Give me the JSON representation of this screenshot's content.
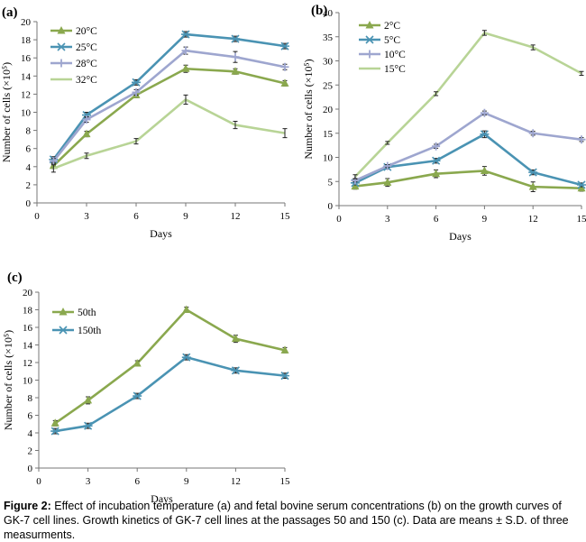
{
  "chart_data": [
    {
      "type": "line",
      "panel_label": "(a)",
      "x": [
        1,
        3,
        6,
        9,
        12,
        15
      ],
      "xticks": [
        "0",
        "3",
        "6",
        "9",
        "12",
        "15"
      ],
      "xlim": [
        0,
        15
      ],
      "ylim": [
        0,
        20
      ],
      "yticks": [
        "0",
        "2",
        "4",
        "6",
        "8",
        "10",
        "12",
        "14",
        "16",
        "18",
        "20"
      ],
      "xlabel": "Days",
      "ylabel": "Number of cells (×10⁵)",
      "legend_position": "top-left",
      "series": [
        {
          "name": "20°C",
          "color": "#8aa84e",
          "marker": "triangle",
          "values": [
            4.1,
            7.6,
            11.9,
            14.8,
            14.5,
            13.2
          ],
          "errors": [
            0.3,
            0.3,
            0.3,
            0.4,
            0.3,
            0.3
          ]
        },
        {
          "name": "25°C",
          "color": "#4a93b3",
          "marker": "star",
          "values": [
            4.8,
            9.7,
            13.3,
            18.6,
            18.1,
            17.3
          ],
          "errors": [
            0.3,
            0.3,
            0.3,
            0.3,
            0.3,
            0.3
          ]
        },
        {
          "name": "28°C",
          "color": "#9ea6cf",
          "marker": "plus",
          "values": [
            4.6,
            9.2,
            12.2,
            16.8,
            16.1,
            15.0
          ],
          "errors": [
            0.3,
            0.3,
            0.3,
            0.4,
            0.6,
            0.3
          ]
        },
        {
          "name": "32°C",
          "color": "#b8d496",
          "marker": "none",
          "values": [
            3.8,
            5.2,
            6.8,
            11.4,
            8.6,
            7.7
          ],
          "errors": [
            0.4,
            0.3,
            0.3,
            0.5,
            0.4,
            0.5
          ]
        }
      ]
    },
    {
      "type": "line",
      "panel_label": "(b)",
      "x": [
        1,
        3,
        6,
        9,
        12,
        15
      ],
      "xticks": [
        "0",
        "3",
        "6",
        "9",
        "12",
        "15"
      ],
      "xlim": [
        0,
        15
      ],
      "ylim": [
        0,
        40
      ],
      "yticks": [
        "0",
        "5",
        "10",
        "15",
        "20",
        "25",
        "30",
        "35",
        "40"
      ],
      "xlabel": "Days",
      "ylabel": "Number of cells (×10⁵)",
      "legend_position": "top-left",
      "series": [
        {
          "name": "2°C",
          "color": "#8aa84e",
          "marker": "triangle",
          "values": [
            4.0,
            4.8,
            6.6,
            7.2,
            3.9,
            3.6
          ],
          "errors": [
            0.6,
            0.8,
            0.8,
            0.9,
            1.0,
            0.6
          ]
        },
        {
          "name": "5°C",
          "color": "#4a93b3",
          "marker": "star",
          "values": [
            4.7,
            8.0,
            9.3,
            14.8,
            6.9,
            4.3
          ],
          "errors": [
            0.4,
            0.4,
            0.5,
            0.7,
            0.5,
            0.4
          ]
        },
        {
          "name": "10°C",
          "color": "#9ea6cf",
          "marker": "plus",
          "values": [
            5.2,
            8.2,
            12.3,
            19.2,
            15.0,
            13.7
          ],
          "errors": [
            0.3,
            0.3,
            0.4,
            0.4,
            0.4,
            0.4
          ]
        },
        {
          "name": "15°C",
          "color": "#b8d496",
          "marker": "none",
          "values": [
            6.0,
            13.0,
            23.2,
            35.8,
            32.8,
            27.4
          ],
          "errors": [
            0.4,
            0.3,
            0.4,
            0.5,
            0.5,
            0.4
          ]
        }
      ]
    },
    {
      "type": "line",
      "panel_label": "(c)",
      "x": [
        1,
        3,
        6,
        9,
        12,
        15
      ],
      "xticks": [
        "0",
        "3",
        "6",
        "9",
        "12",
        "15"
      ],
      "xlim": [
        0,
        15
      ],
      "ylim": [
        0,
        20
      ],
      "yticks": [
        "0",
        "2",
        "4",
        "6",
        "8",
        "10",
        "12",
        "14",
        "16",
        "18",
        "20"
      ],
      "xlabel": "Days",
      "ylabel": "Number of cells (×10⁵)",
      "legend_position": "top-left",
      "series": [
        {
          "name": "50th",
          "color": "#8aa84e",
          "marker": "triangle",
          "values": [
            5.1,
            7.7,
            11.9,
            18.0,
            14.7,
            13.4
          ],
          "errors": [
            0.3,
            0.4,
            0.3,
            0.3,
            0.4,
            0.3
          ]
        },
        {
          "name": "150th",
          "color": "#4a93b3",
          "marker": "star",
          "values": [
            4.2,
            4.8,
            8.2,
            12.6,
            11.1,
            10.5
          ],
          "errors": [
            0.3,
            0.3,
            0.3,
            0.3,
            0.3,
            0.3
          ]
        }
      ]
    }
  ],
  "caption": {
    "label": "Figure 2:",
    "text": " Effect of incubation temperature (a) and fetal bovine serum concentrations (b) on the growth curves of GK-7 cell lines. Growth kinetics of GK-7 cell lines at the passages 50 and 150 (c). Data are means ± S.D. of three measurments."
  }
}
